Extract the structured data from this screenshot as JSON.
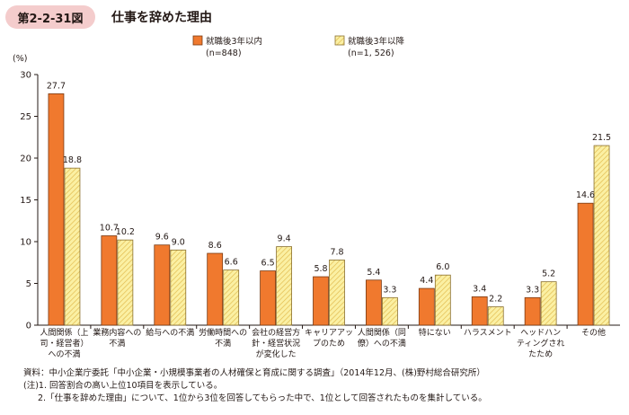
{
  "figure": {
    "label": "第2-2-31図",
    "title": "仕事を辞めた理由"
  },
  "colors": {
    "series1_fill": "#f0792e",
    "series1_stroke": "#7a3a12",
    "series2_fill": "#fbf0a3",
    "series2_stripe": "#e0b84a",
    "series2_stroke": "#8a7030",
    "axis": "#231815"
  },
  "chart_data": {
    "type": "bar",
    "ylabel": "(%)",
    "ylim": [
      0,
      30
    ],
    "yticks": [
      0,
      5,
      10,
      15,
      20,
      25,
      30
    ],
    "categories": [
      [
        "人間関係（上",
        "司・経営者）",
        "への不満"
      ],
      [
        "業務内容への",
        "不満"
      ],
      [
        "給与への不満"
      ],
      [
        "労働時間への",
        "不満"
      ],
      [
        "会社の経営方",
        "針・経営状況",
        "が変化した"
      ],
      [
        "キャリアアッ",
        "プのため"
      ],
      [
        "人間関係（同",
        "僚）への不満"
      ],
      [
        "特にない"
      ],
      [
        "ハラスメント"
      ],
      [
        "ヘッドハン",
        "ティングされ",
        "たため"
      ],
      [
        "その他"
      ]
    ],
    "series": [
      {
        "name": "就職後3年以内",
        "n": "(n=848)",
        "values": [
          27.7,
          10.7,
          9.6,
          8.6,
          6.5,
          5.8,
          5.4,
          4.4,
          3.4,
          3.3,
          14.6
        ]
      },
      {
        "name": "就職後3年以降",
        "n": "(n=1, 526)",
        "values": [
          18.8,
          10.2,
          9.0,
          6.6,
          9.4,
          7.8,
          3.3,
          6.0,
          2.2,
          5.2,
          21.5
        ]
      }
    ]
  },
  "notes": {
    "source": "資料：中小企業庁委託「中小企業・小規模事業者の人材確保と育成に関する調査」（2014年12月、(株)野村総合研究所）",
    "note1": "(注)1. 回答割合の高い上位10項目を表示している。",
    "note2": "2.「仕事を辞めた理由」について、1位から3位を回答してもらった中で、1位として回答されたものを集計している。"
  }
}
